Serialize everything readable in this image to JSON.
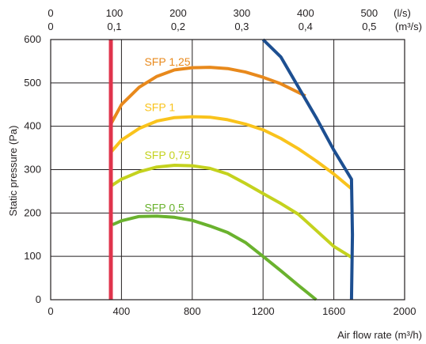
{
  "chart_data": {
    "type": "line",
    "xlabel": "Air flow rate (m³/h)",
    "ylabel": "Static pressure (Pa)",
    "xlim": [
      0,
      2000
    ],
    "ylim": [
      0,
      600
    ],
    "x_ticks": [
      "0",
      "400",
      "800",
      "1200",
      "1600",
      "2000"
    ],
    "y_ticks": [
      "0",
      "100",
      "200",
      "300",
      "400",
      "500",
      "600"
    ],
    "top_axis": {
      "ls_ticks": [
        "0",
        "100",
        "200",
        "300",
        "400",
        "500"
      ],
      "m3s_ticks": [
        "0",
        "0,1",
        "0,2",
        "0,3",
        "0,4",
        "0,5"
      ],
      "unit_ls": "(l/s)",
      "unit_m3s": "(m³/s)"
    },
    "grid": true,
    "series": [
      {
        "name": "SFP 1,25",
        "color": "#e8891c",
        "x": [
          340,
          400,
          500,
          600,
          700,
          800,
          900,
          1000,
          1100,
          1200,
          1300,
          1440
        ],
        "y": [
          405,
          450,
          490,
          515,
          530,
          535,
          536,
          533,
          525,
          513,
          498,
          470
        ]
      },
      {
        "name": "SFP 1",
        "color": "#f9c31c",
        "x": [
          340,
          400,
          500,
          600,
          700,
          800,
          900,
          1000,
          1100,
          1200,
          1300,
          1400,
          1500,
          1600,
          1700
        ],
        "y": [
          340,
          368,
          395,
          412,
          420,
          422,
          421,
          415,
          405,
          392,
          372,
          348,
          320,
          290,
          256
        ]
      },
      {
        "name": "SFP 0,75",
        "color": "#c4d21e",
        "x": [
          340,
          400,
          500,
          600,
          700,
          800,
          900,
          1000,
          1100,
          1200,
          1300,
          1400,
          1500,
          1600,
          1700
        ],
        "y": [
          262,
          278,
          295,
          306,
          310,
          309,
          303,
          290,
          268,
          245,
          222,
          197,
          160,
          123,
          98
        ]
      },
      {
        "name": "SFP 0,5",
        "color": "#6ab22e",
        "x": [
          350,
          400,
          500,
          600,
          700,
          800,
          900,
          1000,
          1100,
          1200,
          1300,
          1400,
          1500
        ],
        "y": [
          173,
          182,
          192,
          193,
          190,
          183,
          170,
          155,
          132,
          100,
          67,
          33,
          0
        ]
      },
      {
        "name": "",
        "color": "#1d4f91",
        "x": [
          1200,
          1300,
          1400,
          1500,
          1600,
          1700,
          1705,
          1700
        ],
        "y": [
          600,
          560,
          490,
          420,
          345,
          278,
          150,
          0
        ]
      },
      {
        "name": "",
        "color": "#e0344c",
        "x": [
          340,
          340
        ],
        "y": [
          0,
          600
        ]
      }
    ]
  }
}
